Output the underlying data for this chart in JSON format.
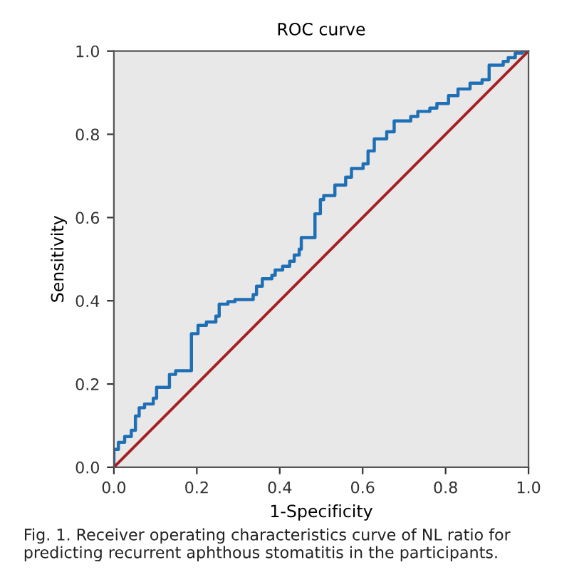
{
  "chart_data": {
    "type": "step",
    "title": "ROC curve",
    "xlabel": "1-Specificity",
    "ylabel": "Sensitivity",
    "series": [
      {
        "color": "#1f6fb5",
        "x": [
          0,
          0,
          0.011,
          0.026,
          0.042,
          0.052,
          0.061,
          0.074,
          0.095,
          0.103,
          0.134,
          0.149,
          0.187,
          0.203,
          0.223,
          0.246,
          0.254,
          0.275,
          0.292,
          0.336,
          0.344,
          0.358,
          0.381,
          0.389,
          0.407,
          0.424,
          0.435,
          0.447,
          0.452,
          0.485,
          0.498,
          0.506,
          0.533,
          0.559,
          0.573,
          0.601,
          0.613,
          0.628,
          0.658,
          0.676,
          0.716,
          0.733,
          0.762,
          0.779,
          0.807,
          0.83,
          0.859,
          0.888,
          0.905,
          0.939,
          0.951,
          0.968,
          0.985,
          1.0
        ],
        "values": [
          0,
          0.043,
          0.06,
          0.074,
          0.089,
          0.123,
          0.143,
          0.152,
          0.166,
          0.192,
          0.223,
          0.232,
          0.321,
          0.341,
          0.349,
          0.363,
          0.392,
          0.398,
          0.403,
          0.415,
          0.435,
          0.453,
          0.461,
          0.474,
          0.483,
          0.495,
          0.51,
          0.524,
          0.552,
          0.609,
          0.643,
          0.653,
          0.678,
          0.697,
          0.718,
          0.729,
          0.76,
          0.789,
          0.806,
          0.832,
          0.843,
          0.855,
          0.863,
          0.874,
          0.893,
          0.909,
          0.923,
          0.931,
          0.966,
          0.975,
          0.984,
          0.995,
          1.0,
          1.0
        ]
      },
      {
        "type": "line",
        "color": "#a51e22",
        "x": [
          0,
          1
        ],
        "values": [
          0,
          1
        ]
      }
    ],
    "xlim": [
      0,
      1
    ],
    "ylim": [
      0,
      1
    ],
    "xticks": [
      {
        "value": 0,
        "label": "0.0"
      },
      0.2,
      0.4,
      0.6,
      0.8,
      {
        "value": 1,
        "label": "1.0"
      }
    ],
    "yticks": [
      {
        "value": 0,
        "label": "0.0"
      },
      0.2,
      0.4,
      0.6,
      0.8,
      {
        "value": 1,
        "label": "1.0"
      }
    ],
    "grid": false,
    "legend": false,
    "annotations": [
      "Fig. 1. Receiver operating characteristics curve of NL ratio for predicting recurrent aphthous stomatitis in the participants."
    ]
  }
}
